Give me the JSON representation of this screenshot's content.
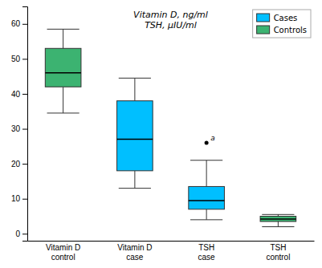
{
  "chart_data": {
    "type": "box",
    "title": [
      "Vitamin D, ng/ml",
      "TSH, μIU/ml"
    ],
    "categories": [
      "Vitamin D\ncontrol",
      "Vitamin D\ncase",
      "TSH\ncase",
      "TSH\ncontrol"
    ],
    "series": [
      {
        "name": "Cases",
        "color": "#00bfff",
        "values": [
          null,
          {
            "med": 27.0,
            "q1": 18.0,
            "q3": 38.0,
            "whislo": 13.0,
            "whishi": 44.5,
            "fliers": [],
            "flier_labels": []
          },
          {
            "med": 9.5,
            "q1": 7.0,
            "q3": 13.5,
            "whislo": 4.0,
            "whishi": 21.0,
            "fliers": [
              26.0
            ],
            "flier_labels": [
              "a"
            ]
          },
          null
        ]
      },
      {
        "name": "Controls",
        "color": "#3cb371",
        "values": [
          {
            "med": 46.0,
            "q1": 42.0,
            "q3": 53.0,
            "whislo": 34.5,
            "whishi": 58.5,
            "fliers": [],
            "flier_labels": []
          },
          null,
          null,
          {
            "med": 4.2,
            "q1": 3.5,
            "q3": 5.0,
            "whislo": 2.0,
            "whishi": 5.5,
            "fliers": [],
            "flier_labels": []
          }
        ]
      }
    ],
    "ylim": [
      -2,
      65
    ],
    "yticks": [
      0,
      10,
      20,
      30,
      40,
      50,
      60
    ],
    "grid": false,
    "legend": "upper right"
  }
}
